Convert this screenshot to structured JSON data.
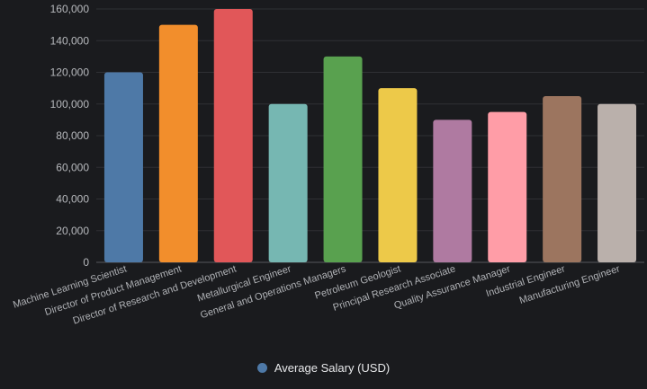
{
  "chart_data": {
    "type": "bar",
    "categories": [
      "Machine Learning Scientist",
      "Director of Product Management",
      "Director of Research and Development",
      "Metallurgical Engineer",
      "General and Operations Managers",
      "Petroleum Geologist",
      "Principal Research Associate",
      "Quality Assurance Manager",
      "Industrial Engineer",
      "Manufacturing Engineer"
    ],
    "series": [
      {
        "name": "Average Salary (USD)",
        "values": [
          120000,
          150000,
          160000,
          100000,
          130000,
          110000,
          90000,
          95000,
          105000,
          100000
        ]
      }
    ],
    "bar_colors": [
      "#4e79a7",
      "#f28e2c",
      "#e15759",
      "#76b7b2",
      "#59a14f",
      "#edc949",
      "#af7aa1",
      "#ff9da7",
      "#9c755f",
      "#bab0ab"
    ],
    "legend_marker_color": "#4e79a7",
    "y_ticks": [
      "0",
      "20,000",
      "40,000",
      "60,000",
      "80,000",
      "100,000",
      "120,000",
      "140,000",
      "160,000"
    ],
    "ylim": [
      0,
      160000
    ],
    "grid": true,
    "legend_position": "bottom-center",
    "title": "",
    "xlabel": "",
    "ylabel": ""
  }
}
